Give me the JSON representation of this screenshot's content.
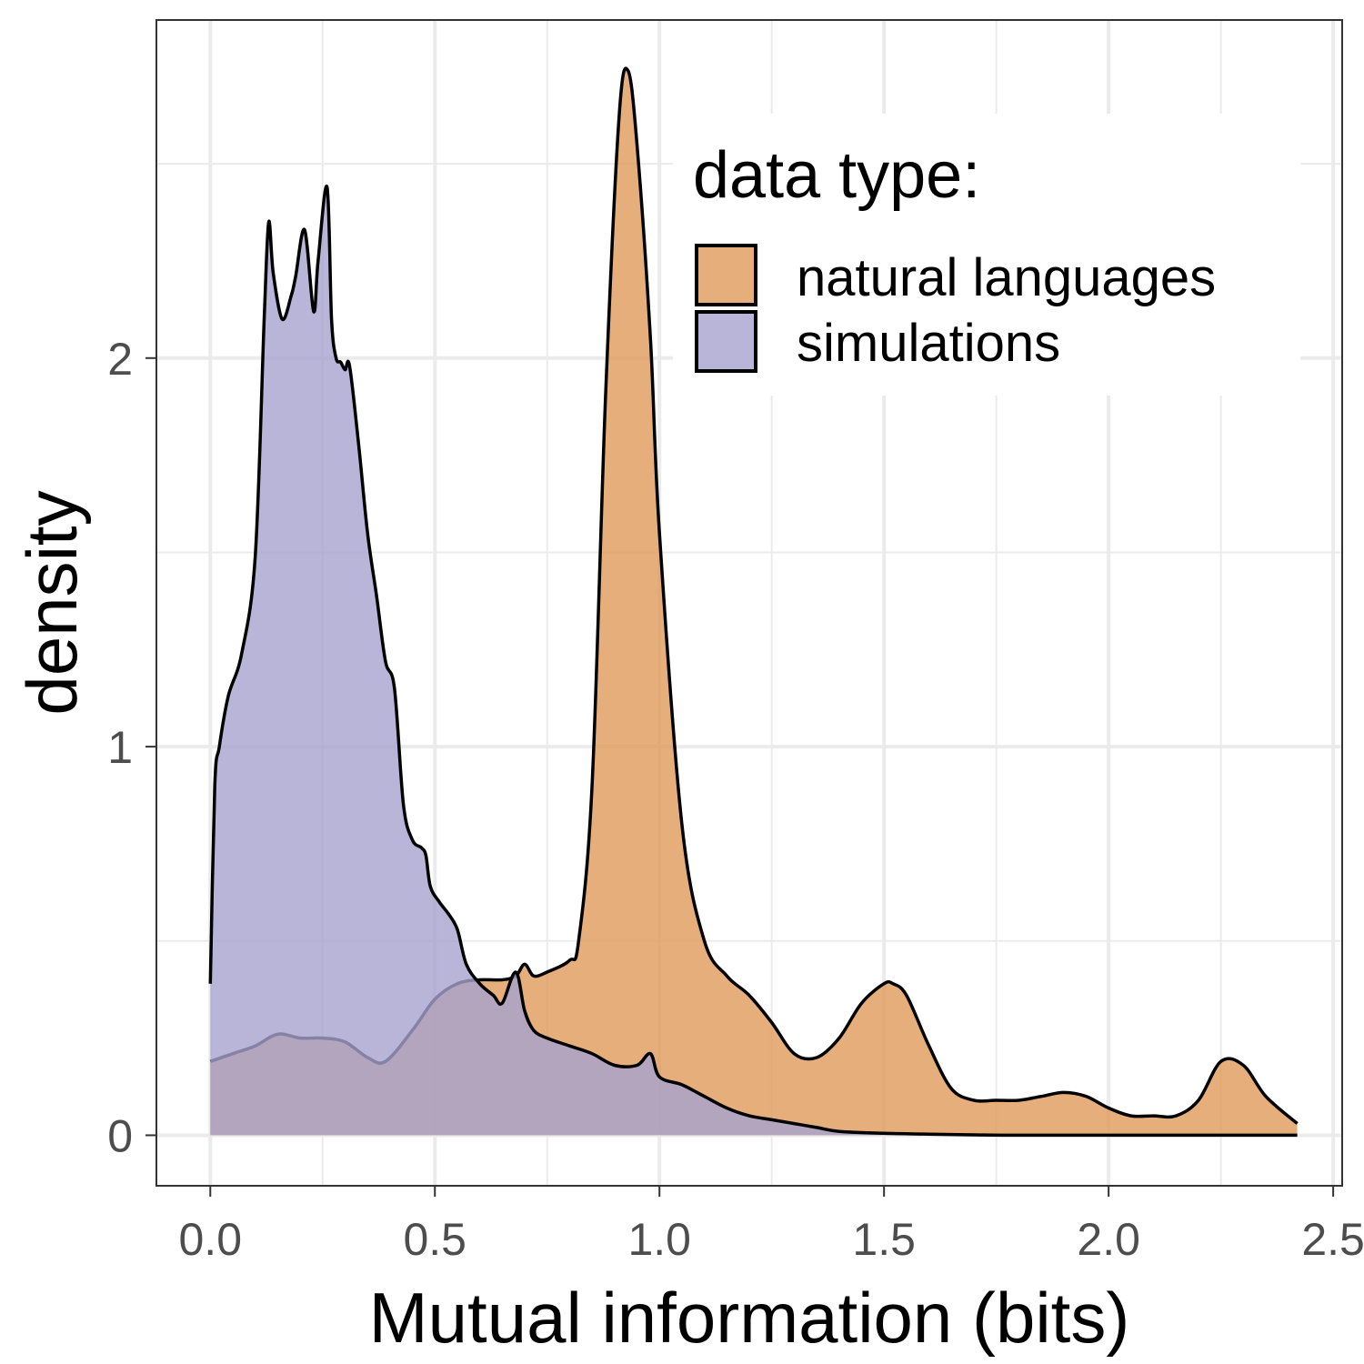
{
  "chart_data": {
    "type": "area",
    "subtype": "density",
    "xlabel": "Mutual information (bits)",
    "ylabel": "density",
    "xlim": [
      -0.12,
      2.52
    ],
    "ylim": [
      -0.13,
      2.87
    ],
    "x_ticks": [
      0.0,
      0.5,
      1.0,
      1.5,
      2.0,
      2.5
    ],
    "x_tick_labels": [
      "0.0",
      "0.5",
      "1.0",
      "1.5",
      "2.0",
      "2.5"
    ],
    "y_ticks": [
      0,
      1,
      2
    ],
    "y_tick_labels": [
      "0",
      "1",
      "2"
    ],
    "grid": true,
    "legend": {
      "title": "data type:",
      "position": "top-right",
      "entries": [
        "natural languages",
        "simulations"
      ]
    },
    "series": [
      {
        "name": "natural languages",
        "color": "#E09A5A",
        "x": [
          0,
          0.05,
          0.1,
          0.15,
          0.2,
          0.25,
          0.3,
          0.35,
          0.39,
          0.45,
          0.5,
          0.55,
          0.6,
          0.65,
          0.68,
          0.7,
          0.72,
          0.75,
          0.8,
          0.82,
          0.85,
          0.88,
          0.91,
          0.93,
          0.95,
          0.98,
          1.0,
          1.05,
          1.1,
          1.15,
          1.2,
          1.25,
          1.3,
          1.35,
          1.4,
          1.45,
          1.5,
          1.52,
          1.55,
          1.6,
          1.65,
          1.7,
          1.75,
          1.8,
          1.85,
          1.9,
          1.95,
          2.0,
          2.05,
          2.1,
          2.15,
          2.2,
          2.25,
          2.3,
          2.35,
          2.42
        ],
        "values": [
          0.19,
          0.21,
          0.23,
          0.26,
          0.25,
          0.25,
          0.24,
          0.2,
          0.19,
          0.27,
          0.35,
          0.39,
          0.4,
          0.4,
          0.41,
          0.44,
          0.41,
          0.42,
          0.45,
          0.5,
          0.9,
          1.9,
          2.62,
          2.74,
          2.55,
          2.05,
          1.55,
          0.8,
          0.5,
          0.41,
          0.36,
          0.29,
          0.21,
          0.2,
          0.25,
          0.34,
          0.39,
          0.39,
          0.36,
          0.23,
          0.12,
          0.09,
          0.09,
          0.09,
          0.1,
          0.11,
          0.1,
          0.07,
          0.05,
          0.05,
          0.05,
          0.09,
          0.19,
          0.18,
          0.1,
          0.03
        ]
      },
      {
        "name": "simulations",
        "color": "#A7A2CF",
        "x": [
          0,
          0.01,
          0.02,
          0.04,
          0.07,
          0.1,
          0.12,
          0.13,
          0.14,
          0.16,
          0.18,
          0.19,
          0.21,
          0.23,
          0.24,
          0.26,
          0.27,
          0.28,
          0.29,
          0.3,
          0.31,
          0.33,
          0.35,
          0.37,
          0.39,
          0.41,
          0.43,
          0.45,
          0.47,
          0.48,
          0.49,
          0.51,
          0.53,
          0.55,
          0.57,
          0.6,
          0.63,
          0.65,
          0.68,
          0.7,
          0.72,
          0.75,
          0.8,
          0.85,
          0.9,
          0.95,
          0.98,
          1.0,
          1.05,
          1.1,
          1.15,
          1.2,
          1.25,
          1.3,
          1.35,
          1.4,
          1.5,
          1.6,
          1.7,
          1.8,
          2.0,
          2.2,
          2.42
        ],
        "values": [
          0.39,
          0.9,
          1.0,
          1.13,
          1.24,
          1.49,
          2.1,
          2.35,
          2.22,
          2.1,
          2.16,
          2.21,
          2.33,
          2.12,
          2.25,
          2.44,
          2.1,
          2.0,
          1.99,
          1.97,
          1.98,
          1.78,
          1.55,
          1.39,
          1.22,
          1.15,
          0.85,
          0.76,
          0.74,
          0.72,
          0.64,
          0.6,
          0.57,
          0.53,
          0.44,
          0.39,
          0.36,
          0.34,
          0.42,
          0.32,
          0.27,
          0.25,
          0.23,
          0.21,
          0.18,
          0.18,
          0.21,
          0.15,
          0.13,
          0.1,
          0.07,
          0.05,
          0.04,
          0.03,
          0.02,
          0.01,
          0.005,
          0.003,
          0.001,
          0.0,
          0.0,
          0.0,
          0.0
        ]
      }
    ]
  }
}
